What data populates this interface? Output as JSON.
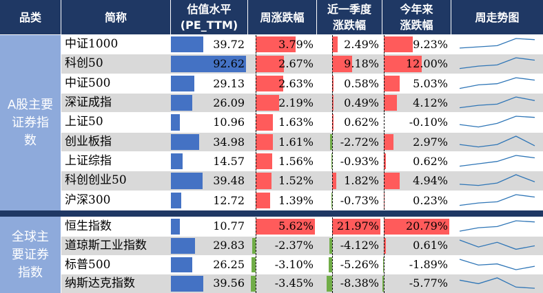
{
  "headers": {
    "category": "品类",
    "name": "简称",
    "pe": "估值水平\n(PE_TTM)",
    "weekly": "周涨跌幅",
    "quarterly": "近一季度\n涨跌幅",
    "ytd": "今年来\n涨跌幅",
    "trend": "周走势图"
  },
  "groups": [
    {
      "label": "A股主要\n证券指\n数"
    },
    {
      "label": "全球主\n要证券\n指数"
    }
  ],
  "colors": {
    "header_bg": "#1f3864",
    "category_bg": "#8eaadb",
    "pe_bar": "#4472c4",
    "positive_bar": "#ff5b5b",
    "negative_bar": "#70ad47",
    "trend_line": "#2e75b6",
    "alt_row": "#d9d9d9"
  },
  "chart_data": {
    "type": "table",
    "columns": [
      "简称",
      "估值水平(PE_TTM)",
      "周涨跌幅",
      "近一季度涨跌幅",
      "今年来涨跌幅",
      "周走势图"
    ],
    "scales": {
      "pe_max": 92.62,
      "weekly_max_abs": 5.62,
      "quarterly_max_abs": 21.97,
      "ytd_max_abs": 20.79
    },
    "rows": [
      {
        "group": 0,
        "name": "中证1000",
        "pe": 39.72,
        "pe_text": "39.72",
        "weekly": 3.79,
        "weekly_text": "3.79%",
        "quarterly": 2.49,
        "quarterly_text": "2.49%",
        "ytd": 9.23,
        "ytd_text": "9.23%",
        "trend": [
          0.2,
          0.3,
          0.4,
          1.0,
          0.9
        ]
      },
      {
        "group": 0,
        "name": "科创50",
        "pe": 92.62,
        "pe_text": "92.62",
        "weekly": 2.67,
        "weekly_text": "2.67%",
        "quarterly": 9.18,
        "quarterly_text": "9.18%",
        "ytd": 12.0,
        "ytd_text": "12.00%",
        "trend": [
          0.1,
          0.3,
          0.4,
          1.0,
          0.8
        ]
      },
      {
        "group": 0,
        "name": "中证500",
        "pe": 29.13,
        "pe_text": "29.13",
        "weekly": 2.63,
        "weekly_text": "2.63%",
        "quarterly": 0.58,
        "quarterly_text": "0.58%",
        "ytd": 5.03,
        "ytd_text": "5.03%",
        "trend": [
          0.1,
          0.4,
          0.5,
          1.0,
          0.8
        ]
      },
      {
        "group": 0,
        "name": "深证成指",
        "pe": 26.09,
        "pe_text": "26.09",
        "weekly": 2.19,
        "weekly_text": "2.19%",
        "quarterly": 0.49,
        "quarterly_text": "0.49%",
        "ytd": 4.12,
        "ytd_text": "4.12%",
        "trend": [
          0.1,
          0.3,
          0.4,
          1.0,
          0.7
        ]
      },
      {
        "group": 0,
        "name": "上证50",
        "pe": 10.96,
        "pe_text": "10.96",
        "weekly": 1.63,
        "weekly_text": "1.63%",
        "quarterly": 0.62,
        "quarterly_text": "0.62%",
        "ytd": -0.1,
        "ytd_text": "-0.10%",
        "trend": [
          0.3,
          0.1,
          0.4,
          1.0,
          0.9
        ]
      },
      {
        "group": 0,
        "name": "创业板指",
        "pe": 34.98,
        "pe_text": "34.98",
        "weekly": 1.61,
        "weekly_text": "1.61%",
        "quarterly": -2.72,
        "quarterly_text": "-2.72%",
        "ytd": 2.97,
        "ytd_text": "2.97%",
        "trend": [
          0.3,
          0.1,
          0.3,
          1.0,
          0.2
        ]
      },
      {
        "group": 0,
        "name": "上证综指",
        "pe": 14.57,
        "pe_text": "14.57",
        "weekly": 1.56,
        "weekly_text": "1.56%",
        "quarterly": -0.93,
        "quarterly_text": "-0.93%",
        "ytd": 0.62,
        "ytd_text": "0.62%",
        "trend": [
          0.1,
          0.3,
          0.5,
          1.0,
          0.8
        ]
      },
      {
        "group": 0,
        "name": "科创创业50",
        "pe": 39.48,
        "pe_text": "39.48",
        "weekly": 1.52,
        "weekly_text": "1.52%",
        "quarterly": 1.82,
        "quarterly_text": "1.82%",
        "ytd": 4.94,
        "ytd_text": "4.94%",
        "trend": [
          0.2,
          0.1,
          0.3,
          1.0,
          0.4
        ]
      },
      {
        "group": 0,
        "name": "沪深300",
        "pe": 12.72,
        "pe_text": "12.72",
        "weekly": 1.39,
        "weekly_text": "1.39%",
        "quarterly": -0.73,
        "quarterly_text": "-0.73%",
        "ytd": 0.23,
        "ytd_text": "0.23%",
        "trend": [
          0.1,
          0.3,
          0.4,
          1.0,
          0.8
        ]
      },
      {
        "group": 1,
        "name": "恒生指数",
        "pe": 10.77,
        "pe_text": "10.77",
        "weekly": 5.62,
        "weekly_text": "5.62%",
        "quarterly": 21.97,
        "quarterly_text": "21.97%",
        "ytd": 20.79,
        "ytd_text": "20.79%",
        "trend": [
          0.1,
          0.4,
          0.5,
          1.0,
          0.9
        ]
      },
      {
        "group": 1,
        "name": "道琼斯工业指数",
        "pe": 29.83,
        "pe_text": "29.83",
        "weekly": -2.37,
        "weekly_text": "-2.37%",
        "quarterly": -4.12,
        "quarterly_text": "-4.12%",
        "ytd": 0.61,
        "ytd_text": "0.61%",
        "trend": [
          1.0,
          0.4,
          0.8,
          0.2,
          0.5
        ]
      },
      {
        "group": 1,
        "name": "标普500",
        "pe": 26.25,
        "pe_text": "26.25",
        "weekly": -3.1,
        "weekly_text": "-3.10%",
        "quarterly": -5.26,
        "quarterly_text": "-5.26%",
        "ytd": -1.89,
        "ytd_text": "-1.89%",
        "trend": [
          1.0,
          0.5,
          0.6,
          0.1,
          0.4
        ]
      },
      {
        "group": 1,
        "name": "纳斯达克指数",
        "pe": 39.56,
        "pe_text": "39.56",
        "weekly": -3.45,
        "weekly_text": "-3.45%",
        "quarterly": -8.38,
        "quarterly_text": "-8.38%",
        "ytd": -5.77,
        "ytd_text": "-5.77%",
        "trend": [
          0.8,
          0.5,
          1.0,
          0.2,
          0.1
        ]
      }
    ]
  }
}
